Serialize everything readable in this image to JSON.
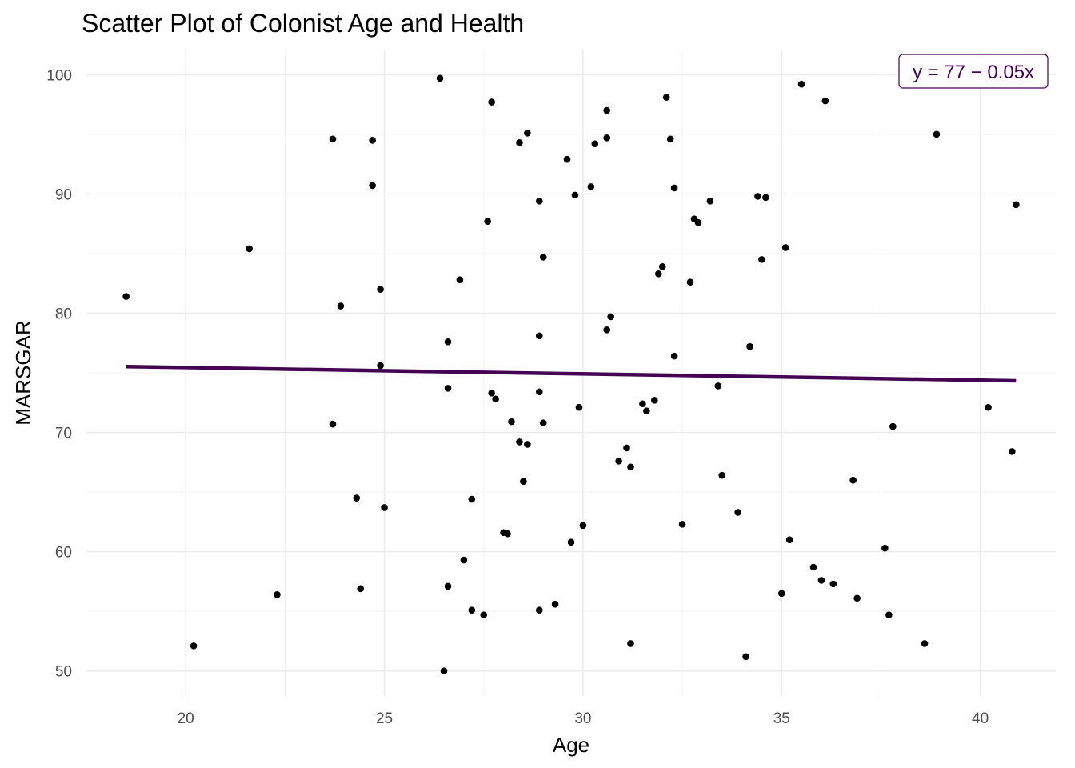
{
  "chart_data": {
    "type": "scatter",
    "title": "Scatter Plot of Colonist Age and Health",
    "xlabel": "Age",
    "ylabel": "MARSGAR",
    "xlim": [
      17.5,
      41.9
    ],
    "ylim": [
      47.9,
      102.1
    ],
    "x_ticks": [
      20,
      25,
      30,
      35,
      40
    ],
    "y_ticks": [
      50,
      60,
      70,
      80,
      90,
      100
    ],
    "grid": true,
    "legend": "none",
    "point_color": "#000000",
    "trend_color": "#440154",
    "trend_line": {
      "intercept": 76.5,
      "slope": -0.053,
      "x_range": [
        18.5,
        40.9
      ]
    },
    "annotation": {
      "text": "y = 77 − 0.05x",
      "x": 39.8,
      "y": 100.4,
      "position": "top-right",
      "color": "#440154"
    },
    "points": [
      [
        18.5,
        81.4
      ],
      [
        20.2,
        52.1
      ],
      [
        21.6,
        85.4
      ],
      [
        22.3,
        56.4
      ],
      [
        23.7,
        94.6
      ],
      [
        23.7,
        70.7
      ],
      [
        23.9,
        80.6
      ],
      [
        24.3,
        64.5
      ],
      [
        24.4,
        56.9
      ],
      [
        24.7,
        94.5
      ],
      [
        24.7,
        90.7
      ],
      [
        24.9,
        82.0
      ],
      [
        24.9,
        75.6
      ],
      [
        25.0,
        63.7
      ],
      [
        26.4,
        99.7
      ],
      [
        26.5,
        50.0
      ],
      [
        26.6,
        77.6
      ],
      [
        26.6,
        73.7
      ],
      [
        26.6,
        57.1
      ],
      [
        26.9,
        82.8
      ],
      [
        27.0,
        59.3
      ],
      [
        27.2,
        64.4
      ],
      [
        27.2,
        55.1
      ],
      [
        27.5,
        54.7
      ],
      [
        27.6,
        87.7
      ],
      [
        27.7,
        97.7
      ],
      [
        27.7,
        73.3
      ],
      [
        27.8,
        72.8
      ],
      [
        28.0,
        61.6
      ],
      [
        28.1,
        61.5
      ],
      [
        28.2,
        70.9
      ],
      [
        28.4,
        94.3
      ],
      [
        28.4,
        69.2
      ],
      [
        28.5,
        65.9
      ],
      [
        28.6,
        95.1
      ],
      [
        28.6,
        69.0
      ],
      [
        28.9,
        89.4
      ],
      [
        28.9,
        78.1
      ],
      [
        28.9,
        73.4
      ],
      [
        28.9,
        55.1
      ],
      [
        29.0,
        84.7
      ],
      [
        29.0,
        70.8
      ],
      [
        29.3,
        55.6
      ],
      [
        29.6,
        92.9
      ],
      [
        29.7,
        60.8
      ],
      [
        29.8,
        89.9
      ],
      [
        29.9,
        72.1
      ],
      [
        30.0,
        62.2
      ],
      [
        30.2,
        90.6
      ],
      [
        30.3,
        94.2
      ],
      [
        30.6,
        97.0
      ],
      [
        30.6,
        94.7
      ],
      [
        30.6,
        78.6
      ],
      [
        30.7,
        79.7
      ],
      [
        30.9,
        67.6
      ],
      [
        31.1,
        68.7
      ],
      [
        31.2,
        67.1
      ],
      [
        31.2,
        52.3
      ],
      [
        31.5,
        72.4
      ],
      [
        31.6,
        71.8
      ],
      [
        31.8,
        72.7
      ],
      [
        31.9,
        83.3
      ],
      [
        32.0,
        83.9
      ],
      [
        32.1,
        98.1
      ],
      [
        32.2,
        94.6
      ],
      [
        32.3,
        90.5
      ],
      [
        32.3,
        76.4
      ],
      [
        32.5,
        62.3
      ],
      [
        32.7,
        82.6
      ],
      [
        32.8,
        87.9
      ],
      [
        32.9,
        87.6
      ],
      [
        33.2,
        89.4
      ],
      [
        33.4,
        73.9
      ],
      [
        33.5,
        66.4
      ],
      [
        33.9,
        63.3
      ],
      [
        34.1,
        51.2
      ],
      [
        34.2,
        77.2
      ],
      [
        34.4,
        89.8
      ],
      [
        34.5,
        84.5
      ],
      [
        34.6,
        89.7
      ],
      [
        35.0,
        56.5
      ],
      [
        35.1,
        85.5
      ],
      [
        35.2,
        61.0
      ],
      [
        35.5,
        99.2
      ],
      [
        35.8,
        58.7
      ],
      [
        36.0,
        57.6
      ],
      [
        36.1,
        97.8
      ],
      [
        36.3,
        57.3
      ],
      [
        36.8,
        66.0
      ],
      [
        36.9,
        56.1
      ],
      [
        37.6,
        60.3
      ],
      [
        37.7,
        54.7
      ],
      [
        37.8,
        70.5
      ],
      [
        38.6,
        52.3
      ],
      [
        38.9,
        95.0
      ],
      [
        40.2,
        72.1
      ],
      [
        40.8,
        68.4
      ],
      [
        40.9,
        89.1
      ]
    ]
  }
}
